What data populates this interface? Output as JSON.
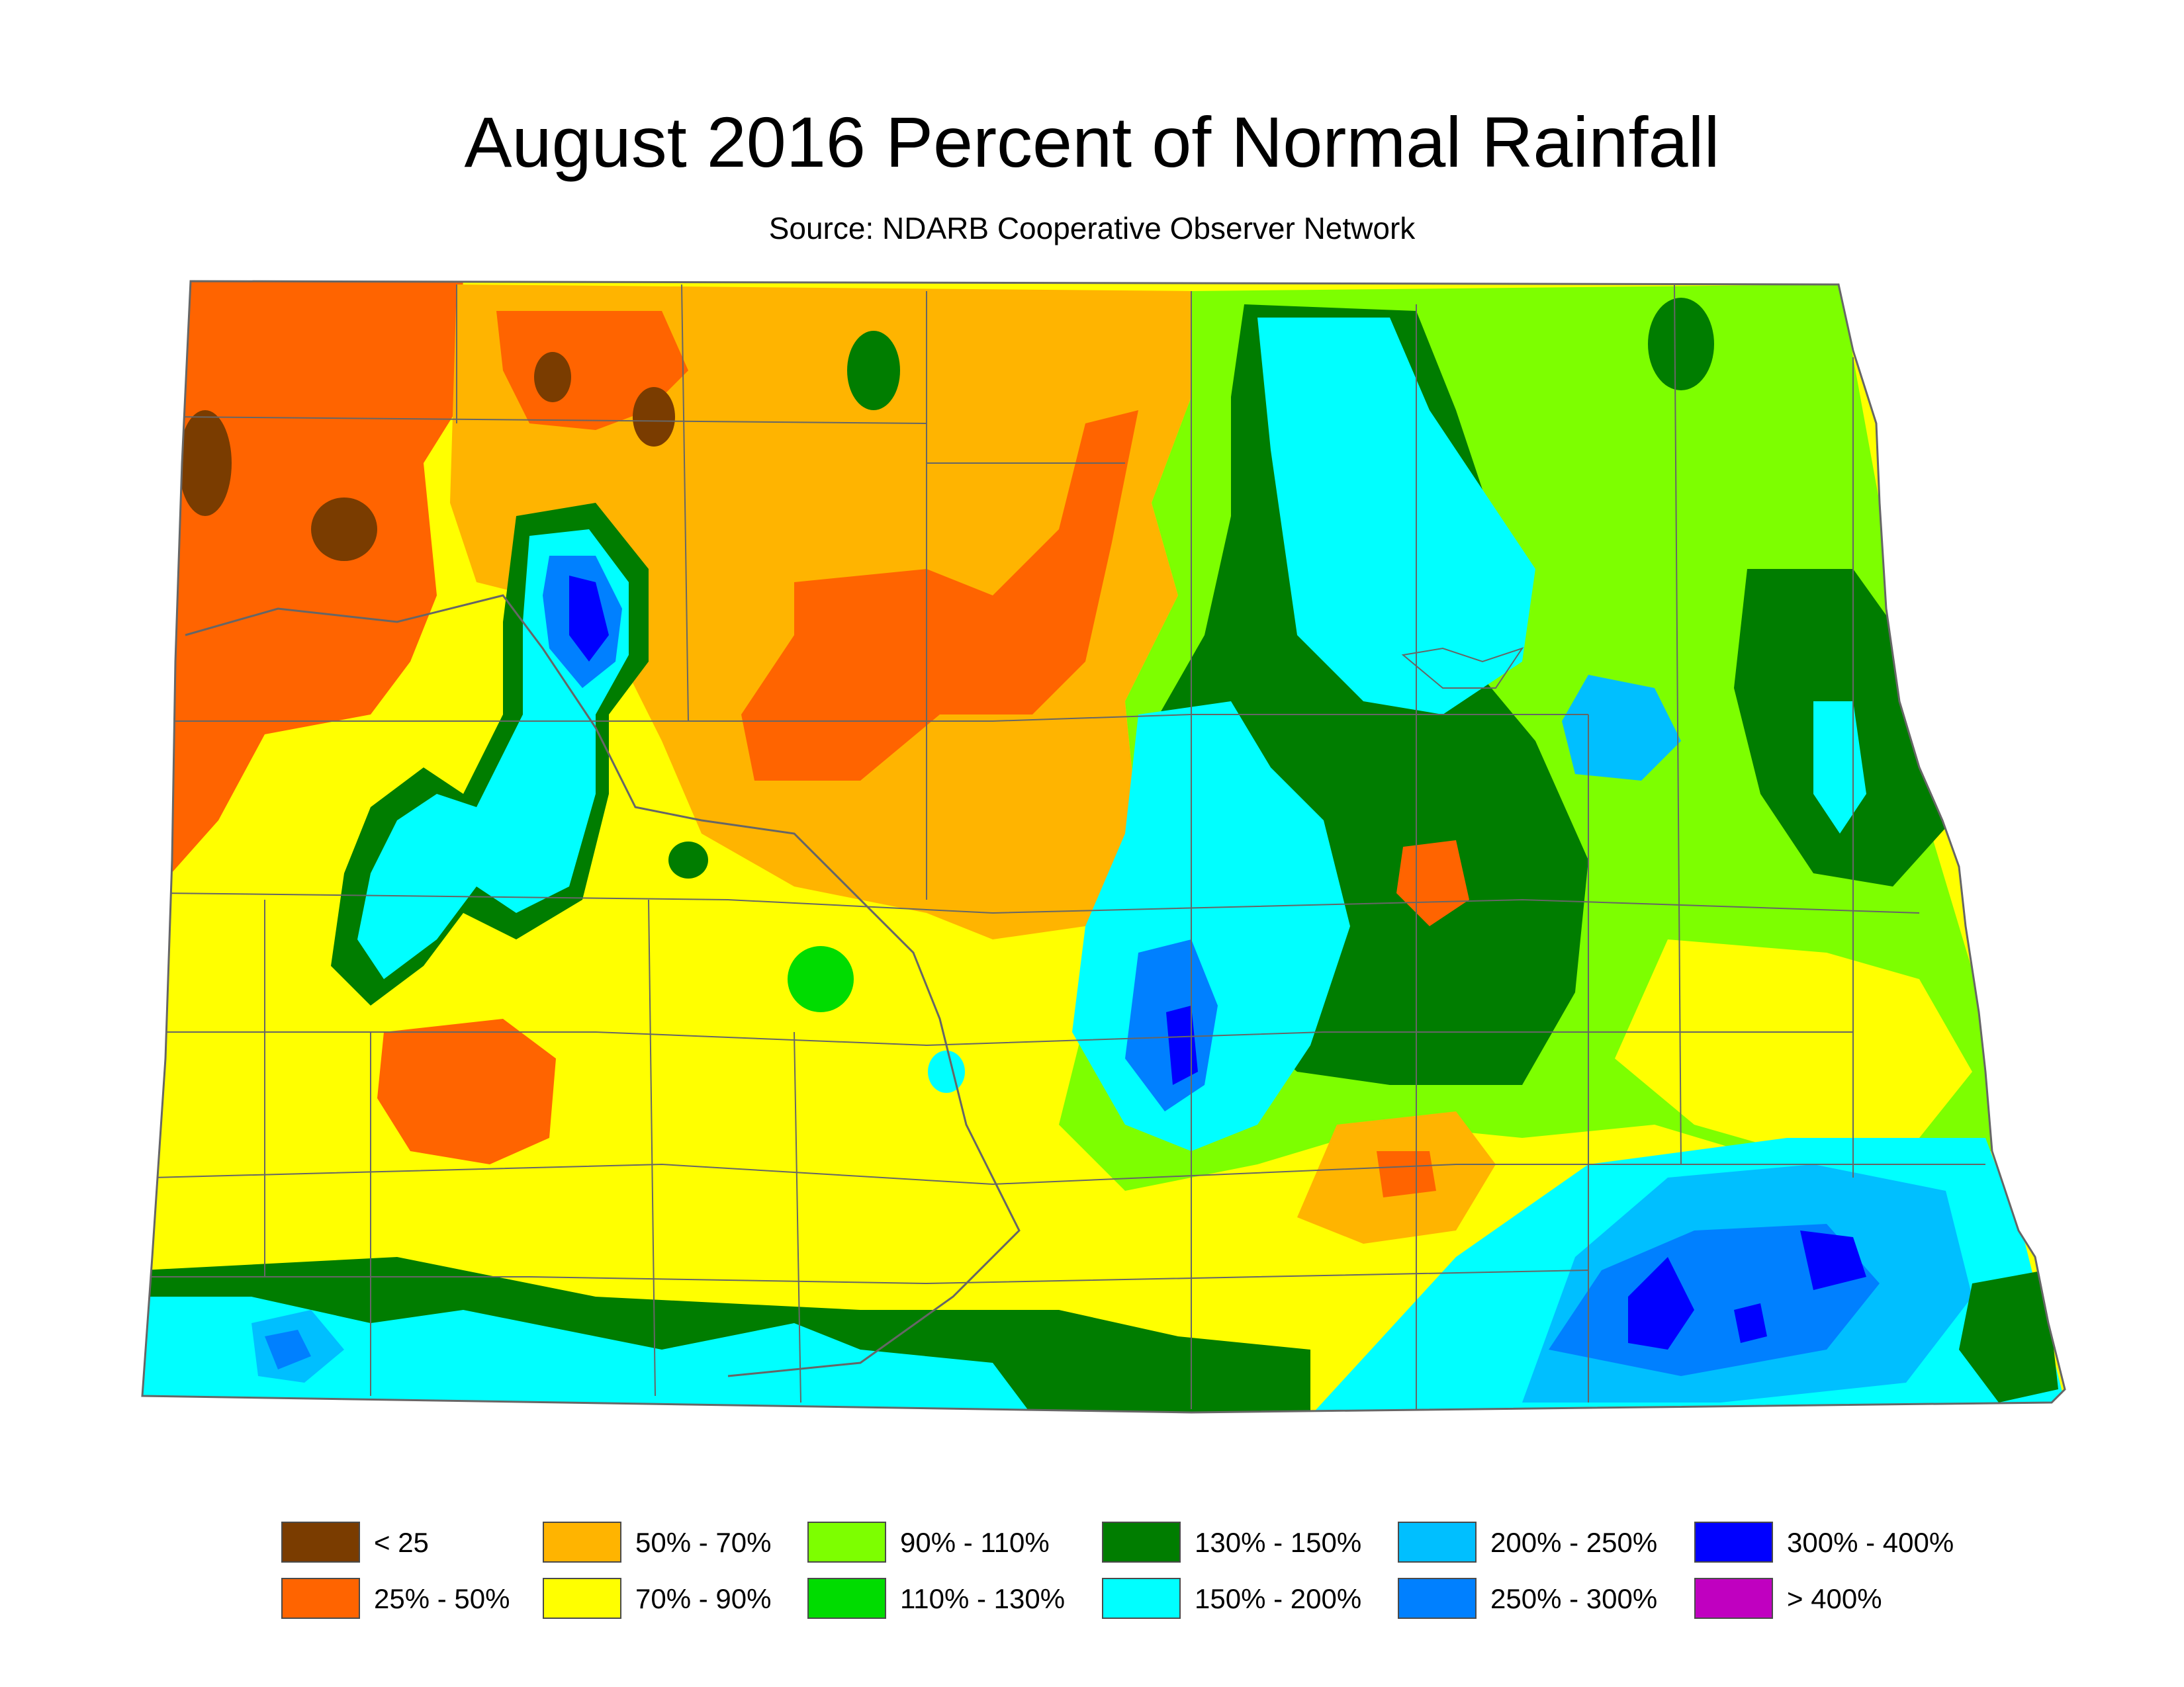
{
  "title": "August 2016 Percent of Normal Rainfall",
  "subtitle": "Source: NDARB Cooperative Observer Network",
  "legend": [
    {
      "label": "< 25",
      "color": "#7a3c00"
    },
    {
      "label": "25% - 50%",
      "color": "#ff6400"
    },
    {
      "label": "50% - 70%",
      "color": "#ffb400"
    },
    {
      "label": "70% - 90%",
      "color": "#ffff00"
    },
    {
      "label": "90% - 110%",
      "color": "#7dff00"
    },
    {
      "label": "110% - 130%",
      "color": "#00dc00"
    },
    {
      "label": "130% - 150%",
      "color": "#007d00"
    },
    {
      "label": "150% - 200%",
      "color": "#00ffff"
    },
    {
      "label": "200% - 250%",
      "color": "#00bfff"
    },
    {
      "label": "250% - 300%",
      "color": "#0080ff"
    },
    {
      "label": "300% - 400%",
      "color": "#0000ff"
    },
    {
      "label": "> 400%",
      "color": "#c000c0"
    }
  ],
  "map": {
    "region_colors": {
      "dark_brown": "#7a3c00",
      "red_orange": "#ff6400",
      "orange": "#ffb400",
      "yellow": "#ffff00",
      "light_green": "#7dff00",
      "green": "#00dc00",
      "dark_green": "#007d00",
      "cyan": "#00ffff",
      "sky_blue": "#00bfff",
      "blue": "#0080ff",
      "dark_blue": "#0000ff"
    },
    "boundary_color": "#666666"
  }
}
